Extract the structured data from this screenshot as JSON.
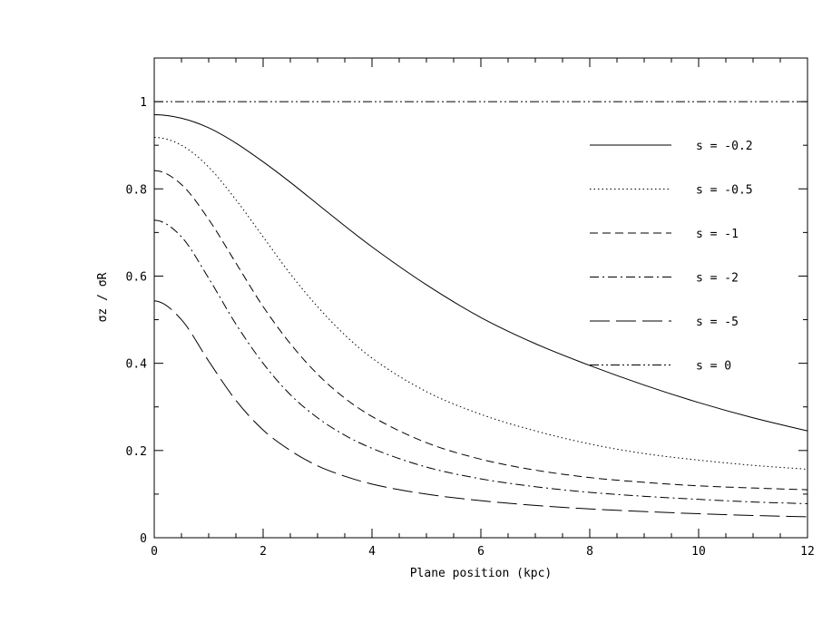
{
  "chart_data": {
    "type": "line",
    "title": "",
    "xlabel": "Plane position (kpc)",
    "ylabel": "σz / σR",
    "xlim": [
      0,
      12
    ],
    "ylim": [
      0,
      1.1
    ],
    "xticks": [
      "0",
      "2",
      "4",
      "6",
      "8",
      "10",
      "12"
    ],
    "yticks": [
      "0",
      "0.2",
      "0.4",
      "0.6",
      "0.8",
      "1"
    ],
    "grid": false,
    "legend_position": "top-right",
    "series": [
      {
        "name": "s = -0.2",
        "dash": "solid",
        "x": [
          0,
          0.5,
          1,
          1.5,
          2,
          2.5,
          3,
          3.5,
          4,
          5,
          6,
          7,
          8,
          9,
          10,
          11,
          12
        ],
        "y": [
          0.97,
          0.962,
          0.94,
          0.905,
          0.862,
          0.815,
          0.765,
          0.715,
          0.667,
          0.58,
          0.505,
          0.445,
          0.395,
          0.35,
          0.31,
          0.275,
          0.245
        ]
      },
      {
        "name": "s = -0.5",
        "dash": "dotted",
        "x": [
          0,
          0.5,
          1,
          1.5,
          2,
          2.5,
          3,
          3.5,
          4,
          5,
          6,
          7,
          8,
          9,
          10,
          11,
          12
        ],
        "y": [
          0.918,
          0.9,
          0.85,
          0.775,
          0.69,
          0.605,
          0.53,
          0.465,
          0.412,
          0.335,
          0.283,
          0.245,
          0.215,
          0.193,
          0.178,
          0.166,
          0.157
        ]
      },
      {
        "name": "s = -1",
        "dash": "short-dash",
        "x": [
          0,
          0.5,
          1,
          1.5,
          2,
          2.5,
          3,
          3.5,
          4,
          5,
          6,
          7,
          8,
          9,
          10,
          11,
          12
        ],
        "y": [
          0.842,
          0.81,
          0.73,
          0.63,
          0.53,
          0.445,
          0.375,
          0.32,
          0.278,
          0.218,
          0.18,
          0.155,
          0.138,
          0.127,
          0.119,
          0.114,
          0.11
        ]
      },
      {
        "name": "s = -2",
        "dash": "dash-dot",
        "x": [
          0,
          0.5,
          1,
          1.5,
          2,
          2.5,
          3,
          3.5,
          4,
          5,
          6,
          7,
          8,
          9,
          10,
          11,
          12
        ],
        "y": [
          0.728,
          0.69,
          0.595,
          0.49,
          0.4,
          0.328,
          0.275,
          0.235,
          0.205,
          0.162,
          0.135,
          0.117,
          0.104,
          0.095,
          0.088,
          0.082,
          0.078
        ]
      },
      {
        "name": "s = -5",
        "dash": "long-dash",
        "x": [
          0,
          0.5,
          1,
          1.5,
          2,
          2.5,
          3,
          3.5,
          4,
          5,
          6,
          7,
          8,
          9,
          10,
          11,
          12
        ],
        "y": [
          0.543,
          0.5,
          0.405,
          0.315,
          0.247,
          0.2,
          0.165,
          0.141,
          0.123,
          0.1,
          0.085,
          0.074,
          0.066,
          0.06,
          0.055,
          0.051,
          0.048
        ]
      },
      {
        "name": "s = 0",
        "dash": "dash-dot-dot",
        "x": [
          0,
          12
        ],
        "y": [
          1.0,
          1.0
        ]
      }
    ]
  }
}
